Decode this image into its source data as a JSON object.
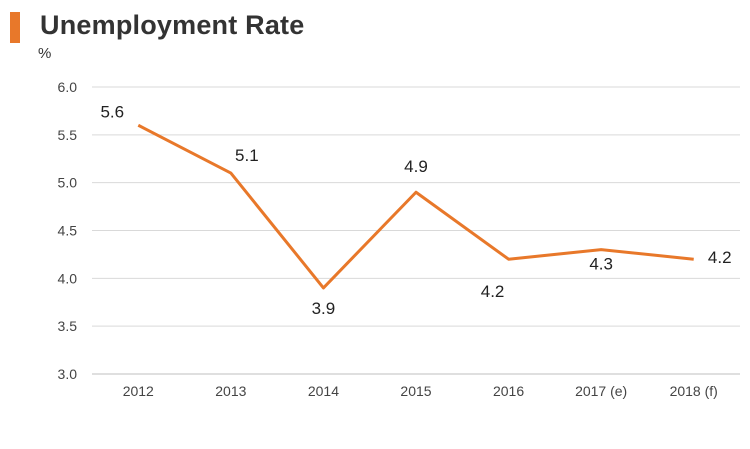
{
  "header": {
    "title": "Unemployment Rate",
    "unit": "%"
  },
  "colors": {
    "accent": "#e8782a",
    "line": "#e8782a",
    "grid": "#d9d9d9"
  },
  "chart_data": {
    "type": "line",
    "title": "Unemployment Rate",
    "ylabel": "%",
    "xlabel": "",
    "categories": [
      "2012",
      "2013",
      "2014",
      "2015",
      "2016",
      "2017 (e)",
      "2018 (f)"
    ],
    "series": [
      {
        "values": [
          5.6,
          5.1,
          3.9,
          4.9,
          4.2,
          4.3,
          4.2
        ]
      }
    ],
    "data_labels": [
      "5.6",
      "5.1",
      "3.9",
      "4.9",
      "4.2",
      "4.3",
      "4.2"
    ],
    "ylim": [
      3.0,
      6.0
    ],
    "yticks": [
      "3.0",
      "3.5",
      "4.0",
      "4.5",
      "5.0",
      "5.5",
      "6.0"
    ],
    "grid": true,
    "legend": "none"
  }
}
